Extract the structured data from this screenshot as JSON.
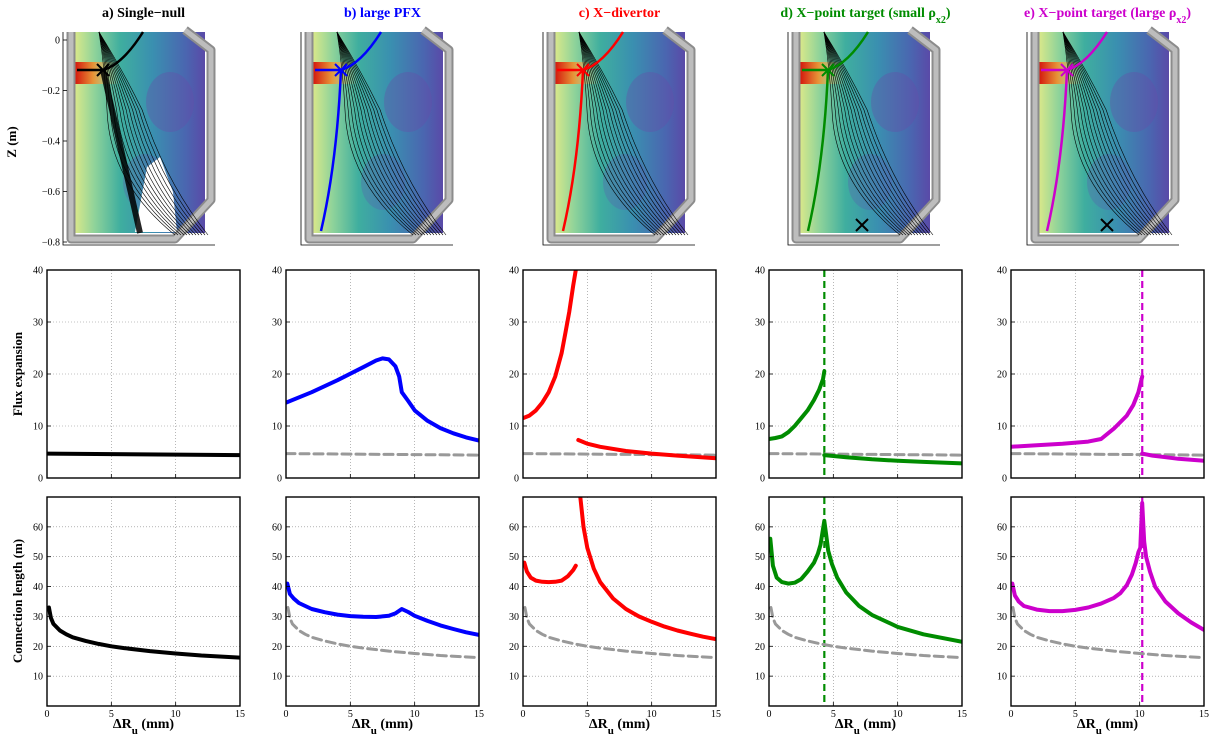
{
  "colors": {
    "black": "#000000",
    "blue": "#0000ff",
    "red": "#ff0000",
    "green": "#008c00",
    "magenta": "#cc00cc",
    "reference": "#999999"
  },
  "row_labels": {
    "top": "Z (m)",
    "middle": "Flux expansion",
    "bottom": "Connection length (m)"
  },
  "x_label": "ΔR",
  "x_label_sub": "u",
  "x_label_unit": " (mm)",
  "x_ticks": [
    "0",
    "5",
    "10",
    "15"
  ],
  "top_y_ticks": [
    "0",
    "−0.2",
    "−0.4",
    "−0.6",
    "−0.8"
  ],
  "flux_y_ticks": [
    "0",
    "10",
    "20",
    "30",
    "40"
  ],
  "conn_y_ticks": [
    "10",
    "20",
    "30",
    "40",
    "50",
    "60"
  ],
  "panels": [
    {
      "title": "a) Single−null",
      "color": "#000000",
      "sub": ""
    },
    {
      "title": "b) large PFX",
      "color": "#0000ff",
      "sub": ""
    },
    {
      "title": "c) X−divertor",
      "color": "#ff0000",
      "sub": ""
    },
    {
      "title": "d) X−point target (small ρ",
      "color": "#008c00",
      "sub": "x2",
      "close": ")"
    },
    {
      "title": "e) X−point target (large ρ",
      "color": "#cc00cc",
      "sub": "x2",
      "close": ")"
    }
  ],
  "chart_data": [
    {
      "type": "line",
      "panel": "a",
      "ylabel": "Flux expansion",
      "xlim": [
        0,
        15
      ],
      "ylim": [
        0,
        40
      ],
      "grid": true,
      "series": [
        {
          "color": "#000000",
          "x": [
            0,
            15
          ],
          "y": [
            4.7,
            4.4
          ]
        }
      ]
    },
    {
      "type": "line",
      "panel": "b",
      "ylabel": "Flux expansion",
      "xlim": [
        0,
        15
      ],
      "ylim": [
        0,
        40
      ],
      "grid": true,
      "series": [
        {
          "color": "#999999",
          "dashed": true,
          "x": [
            0,
            15
          ],
          "y": [
            4.7,
            4.4
          ]
        },
        {
          "color": "#0000ff",
          "x": [
            0,
            2,
            4,
            6,
            7,
            7.5,
            8,
            8.5,
            8.8,
            9,
            9.5,
            10,
            11,
            12,
            13,
            14,
            15
          ],
          "y": [
            14.5,
            16.5,
            18.8,
            21.3,
            22.6,
            23,
            22.8,
            21.5,
            19.5,
            16.5,
            14.8,
            13,
            11,
            9.6,
            8.6,
            7.8,
            7.2
          ]
        }
      ]
    },
    {
      "type": "line",
      "panel": "c",
      "ylabel": "Flux expansion",
      "xlim": [
        0,
        15
      ],
      "ylim": [
        0,
        40
      ],
      "grid": true,
      "series": [
        {
          "color": "#999999",
          "dashed": true,
          "x": [
            0,
            15
          ],
          "y": [
            4.7,
            4.4
          ]
        },
        {
          "color": "#ff0000",
          "x": [
            0,
            0.5,
            1,
            1.5,
            2,
            2.5,
            3,
            3.3,
            3.6,
            3.9,
            4.1
          ],
          "y": [
            11.5,
            12,
            13,
            14.5,
            16.5,
            19.5,
            24,
            28,
            32,
            37,
            40
          ]
        },
        {
          "color": "#ff0000",
          "x": [
            4.3,
            5,
            6,
            8,
            10,
            12,
            15
          ],
          "y": [
            7.3,
            6.6,
            6,
            5.2,
            4.7,
            4.3,
            3.8
          ]
        }
      ]
    },
    {
      "type": "line",
      "panel": "d",
      "ylabel": "Flux expansion",
      "xlim": [
        0,
        15
      ],
      "ylim": [
        0,
        40
      ],
      "grid": true,
      "vline": 4.3,
      "series": [
        {
          "color": "#999999",
          "dashed": true,
          "x": [
            0,
            15
          ],
          "y": [
            4.7,
            4.4
          ]
        },
        {
          "color": "#008c00",
          "x": [
            0,
            0.5,
            1,
            1.5,
            2,
            2.5,
            3,
            3.5,
            3.9,
            4.2,
            4.3
          ],
          "y": [
            7.5,
            7.7,
            8,
            8.8,
            10,
            11.5,
            13,
            15,
            17,
            19,
            20.5
          ]
        },
        {
          "color": "#008c00",
          "x": [
            4.3,
            6,
            8,
            10,
            12,
            15
          ],
          "y": [
            4.4,
            4,
            3.6,
            3.3,
            3.1,
            2.8
          ]
        }
      ]
    },
    {
      "type": "line",
      "panel": "e",
      "ylabel": "Flux expansion",
      "xlim": [
        0,
        15
      ],
      "ylim": [
        0,
        40
      ],
      "grid": true,
      "vline": 10.2,
      "series": [
        {
          "color": "#999999",
          "dashed": true,
          "x": [
            0,
            15
          ],
          "y": [
            4.7,
            4.4
          ]
        },
        {
          "color": "#cc00cc",
          "x": [
            0,
            2,
            4,
            6,
            7,
            8,
            9,
            9.5,
            9.9,
            10.2
          ],
          "y": [
            6,
            6.3,
            6.6,
            7,
            7.5,
            9.5,
            12,
            14,
            16.5,
            19.5
          ]
        },
        {
          "color": "#cc00cc",
          "x": [
            10.2,
            11,
            12,
            13,
            14,
            15
          ],
          "y": [
            4.7,
            4.3,
            4,
            3.7,
            3.5,
            3.3
          ]
        }
      ]
    },
    {
      "type": "line",
      "panel": "a",
      "ylabel": "Connection length (m)",
      "xlim": [
        0,
        15
      ],
      "ylim": [
        0,
        70
      ],
      "grid": true,
      "series": [
        {
          "color": "#000000",
          "x": [
            0.15,
            0.3,
            0.5,
            1,
            1.5,
            2,
            3,
            4,
            5,
            6,
            8,
            10,
            12,
            15
          ],
          "y": [
            33,
            29.5,
            27.5,
            25.3,
            24,
            23,
            21.8,
            20.8,
            20,
            19.4,
            18.4,
            17.6,
            16.9,
            16.2
          ]
        }
      ]
    },
    {
      "type": "line",
      "panel": "b",
      "ylabel": "Connection length (m)",
      "xlim": [
        0,
        15
      ],
      "ylim": [
        0,
        70
      ],
      "grid": true,
      "series": [
        {
          "color": "#999999",
          "dashed": true,
          "x": [
            0.15,
            0.3,
            0.5,
            1,
            1.5,
            2,
            3,
            4,
            5,
            6,
            8,
            10,
            12,
            15
          ],
          "y": [
            33,
            29.5,
            27.5,
            25.3,
            24,
            23,
            21.8,
            20.8,
            20,
            19.4,
            18.4,
            17.6,
            16.9,
            16.2
          ]
        },
        {
          "color": "#0000ff",
          "x": [
            0.1,
            0.3,
            0.6,
            1,
            2,
            3,
            4,
            5,
            6,
            7,
            8,
            8.5,
            9,
            9.5,
            10,
            11,
            12,
            13,
            14,
            15
          ],
          "y": [
            41,
            37.5,
            36,
            34.5,
            32.5,
            31.4,
            30.6,
            30.1,
            29.9,
            29.8,
            30.2,
            31,
            32.5,
            31.5,
            30.2,
            28.5,
            27,
            25.8,
            24.7,
            23.8
          ]
        }
      ]
    },
    {
      "type": "line",
      "panel": "c",
      "ylabel": "Connection length (m)",
      "xlim": [
        0,
        15
      ],
      "ylim": [
        0,
        70
      ],
      "grid": true,
      "series": [
        {
          "color": "#999999",
          "dashed": true,
          "x": [
            0.15,
            0.3,
            0.5,
            1,
            1.5,
            2,
            3,
            4,
            5,
            6,
            8,
            10,
            12,
            15
          ],
          "y": [
            33,
            29.5,
            27.5,
            25.3,
            24,
            23,
            21.8,
            20.8,
            20,
            19.4,
            18.4,
            17.6,
            16.9,
            16.2
          ]
        },
        {
          "color": "#ff0000",
          "x": [
            0.1,
            0.3,
            0.6,
            1,
            1.5,
            2,
            2.5,
            3,
            3.5,
            3.9,
            4.1
          ],
          "y": [
            48,
            45,
            43,
            42,
            41.6,
            41.5,
            41.6,
            42,
            43.5,
            45.5,
            47
          ]
        },
        {
          "color": "#ff0000",
          "x": [
            4.45,
            4.7,
            5,
            5.5,
            6,
            7,
            8,
            9,
            10,
            11,
            12,
            13,
            14,
            15
          ],
          "y": [
            70,
            60,
            53,
            46,
            41.5,
            36,
            32.5,
            30,
            28.2,
            26.6,
            25.3,
            24.2,
            23.2,
            22.4
          ]
        }
      ]
    },
    {
      "type": "line",
      "panel": "d",
      "ylabel": "Connection length (m)",
      "xlim": [
        0,
        15
      ],
      "ylim": [
        0,
        70
      ],
      "grid": true,
      "vline": 4.3,
      "series": [
        {
          "color": "#999999",
          "dashed": true,
          "x": [
            0.15,
            0.3,
            0.5,
            1,
            1.5,
            2,
            3,
            4,
            5,
            6,
            8,
            10,
            12,
            15
          ],
          "y": [
            33,
            29.5,
            27.5,
            25.3,
            24,
            23,
            21.8,
            20.8,
            20,
            19.4,
            18.4,
            17.6,
            16.9,
            16.2
          ]
        },
        {
          "color": "#008c00",
          "x": [
            0.1,
            0.3,
            0.6,
            1,
            1.5,
            2,
            2.5,
            3,
            3.5,
            3.8,
            4,
            4.15,
            4.3,
            4.45,
            4.6,
            4.9,
            5.3,
            6,
            7,
            8,
            10,
            12,
            15
          ],
          "y": [
            56,
            47,
            43,
            41.5,
            41,
            41.3,
            42.5,
            45,
            48,
            51,
            54,
            58,
            62,
            57,
            52,
            47.5,
            43,
            38,
            33.5,
            30.5,
            26.5,
            24,
            21.5
          ]
        }
      ]
    },
    {
      "type": "line",
      "panel": "e",
      "ylabel": "Connection length (m)",
      "xlim": [
        0,
        15
      ],
      "ylim": [
        0,
        70
      ],
      "grid": true,
      "vline": 10.2,
      "series": [
        {
          "color": "#999999",
          "dashed": true,
          "x": [
            0.15,
            0.3,
            0.5,
            1,
            1.5,
            2,
            3,
            4,
            5,
            6,
            8,
            10,
            12,
            15
          ],
          "y": [
            33,
            29.5,
            27.5,
            25.3,
            24,
            23,
            21.8,
            20.8,
            20,
            19.4,
            18.4,
            17.6,
            16.9,
            16.2
          ]
        },
        {
          "color": "#cc00cc",
          "x": [
            0.1,
            0.3,
            0.6,
            1,
            2,
            3,
            4,
            5,
            6,
            7,
            8,
            8.5,
            9,
            9.4,
            9.7,
            9.9,
            10.05,
            10.2,
            10.35,
            10.5,
            10.8,
            11.2,
            12,
            13,
            14,
            15
          ],
          "y": [
            41,
            37,
            35,
            33.5,
            32.3,
            31.8,
            31.8,
            32.2,
            33,
            34.3,
            36.2,
            37.8,
            40.5,
            44,
            48,
            51.5,
            53,
            68,
            55,
            50,
            45,
            40,
            35,
            31,
            28,
            25.5
          ]
        }
      ]
    }
  ]
}
